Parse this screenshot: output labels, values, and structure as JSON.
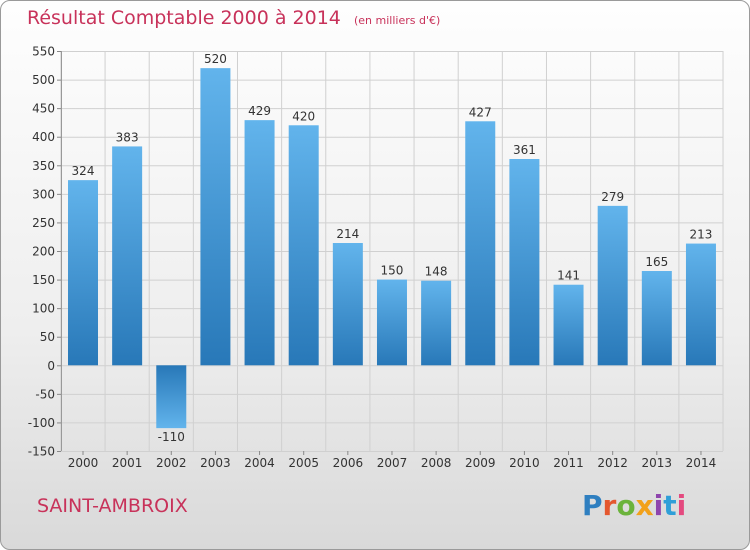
{
  "header": {
    "title": "Résultat Comptable 2000 à 2014",
    "subtitle": "(en milliers d'€)"
  },
  "footer": {
    "commune": "SAINT-AMBROIX",
    "brand": "Proxiti"
  },
  "colors": {
    "title": "#c8325a",
    "bar_light": "#62b4ec",
    "bar_dark": "#2878b8",
    "grid": "#d0d0d0",
    "axis_text": "#333333",
    "brand_letters": [
      "#2f7fc0",
      "#e4572e",
      "#6bb33b",
      "#f2a11a",
      "#8e44ad",
      "#2f9fd8",
      "#e44a7f"
    ]
  },
  "chart_data": {
    "type": "bar",
    "title": "Résultat Comptable 2000 à 2014",
    "ylabel": "(en milliers d'€)",
    "xlabel": "",
    "categories": [
      "2000",
      "2001",
      "2002",
      "2003",
      "2004",
      "2005",
      "2006",
      "2007",
      "2008",
      "2009",
      "2010",
      "2011",
      "2012",
      "2013",
      "2014"
    ],
    "values": [
      324,
      383,
      -110,
      520,
      429,
      420,
      214,
      150,
      148,
      427,
      361,
      141,
      279,
      165,
      213
    ],
    "labels": [
      "324",
      "383",
      "-110",
      "520",
      "429",
      "420",
      "214",
      "150",
      "148",
      "427",
      "361",
      "141",
      "279",
      "165",
      "213"
    ],
    "ylim": [
      -150,
      550
    ],
    "yticks": [
      -150,
      -100,
      -50,
      0,
      50,
      100,
      150,
      200,
      250,
      300,
      350,
      400,
      450,
      500,
      550
    ],
    "ytick_labels": [
      "-150",
      "-100",
      "-50",
      "0",
      "50",
      "100",
      "150",
      "200",
      "250",
      "300",
      "350",
      "400",
      "450",
      "500",
      "550"
    ],
    "grid": true
  }
}
